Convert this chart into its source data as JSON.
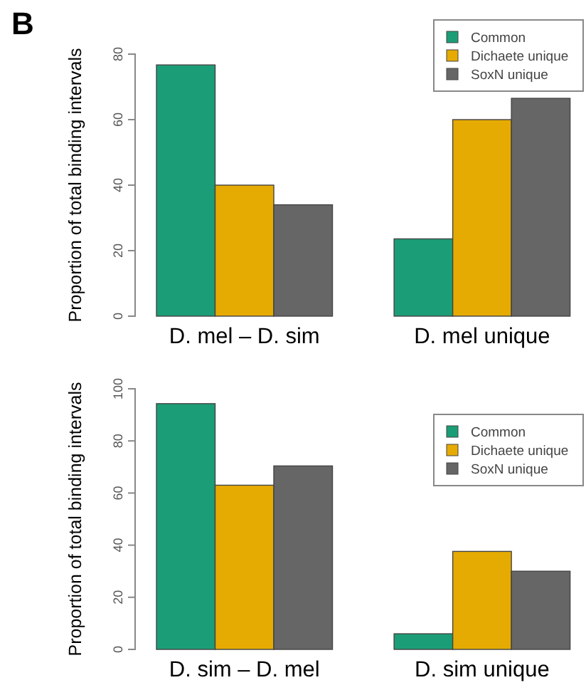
{
  "chart_data": [
    {
      "type": "bar",
      "annotations": [
        "B"
      ],
      "ylabel": "Proportion of total binding intervals",
      "categories": [
        "D. mel – D. sim",
        "D. mel unique"
      ],
      "ylim": [
        0,
        80
      ],
      "yticks": [
        0,
        20,
        40,
        60,
        80
      ],
      "legend": "top right",
      "grid": false,
      "series": [
        {
          "name": "Common",
          "color": "#1b9e77",
          "values": [
            76.7,
            23.6
          ]
        },
        {
          "name": "Dichaete unique",
          "color": "#e6ab02",
          "values": [
            40,
            60
          ]
        },
        {
          "name": "SoxN unique",
          "color": "#666666",
          "values": [
            34,
            66.5
          ]
        }
      ]
    },
    {
      "type": "bar",
      "ylabel": "Proportion of total binding intervals",
      "categories": [
        "D. sim – D. mel",
        "D. sim unique"
      ],
      "ylim": [
        0,
        100
      ],
      "yticks": [
        0,
        20,
        40,
        60,
        80,
        100
      ],
      "legend": "top right",
      "grid": false,
      "series": [
        {
          "name": "Common",
          "color": "#1b9e77",
          "values": [
            94.3,
            6
          ]
        },
        {
          "name": "Dichaete unique",
          "color": "#e6ab02",
          "values": [
            63,
            37.6
          ]
        },
        {
          "name": "SoxN unique",
          "color": "#666666",
          "values": [
            70.4,
            30
          ]
        }
      ]
    }
  ]
}
